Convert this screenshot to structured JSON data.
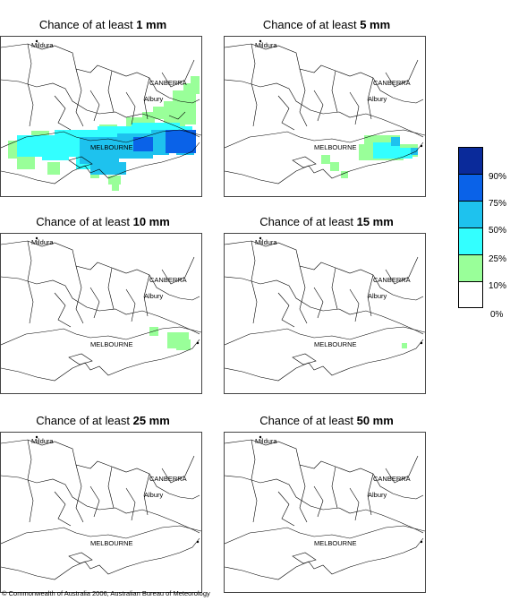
{
  "panels": [
    {
      "title_prefix": "Chance of at least ",
      "title_amount": "1 mm"
    },
    {
      "title_prefix": "Chance of at least ",
      "title_amount": "5 mm"
    },
    {
      "title_prefix": "Chance of at least ",
      "title_amount": "10 mm"
    },
    {
      "title_prefix": "Chance of at least ",
      "title_amount": "15 mm"
    },
    {
      "title_prefix": "Chance of at least ",
      "title_amount": "25 mm"
    },
    {
      "title_prefix": "Chance of at least ",
      "title_amount": "50 mm"
    }
  ],
  "places": {
    "mildura": "Mildura",
    "canberra": "CANBERRA",
    "albury": "Albury",
    "melbourne": "MELBOURNE"
  },
  "legend": {
    "ticks": [
      "90%",
      "75%",
      "50%",
      "25%",
      "10%",
      "0%"
    ],
    "colors": [
      "#0a2a9a",
      "#0a62e8",
      "#1ec2ee",
      "#33ffff",
      "#99ff99",
      "#ffffff"
    ]
  },
  "copyright": "© Commonwealth of Australia 2006, Australian Bureau of Meteorology"
}
